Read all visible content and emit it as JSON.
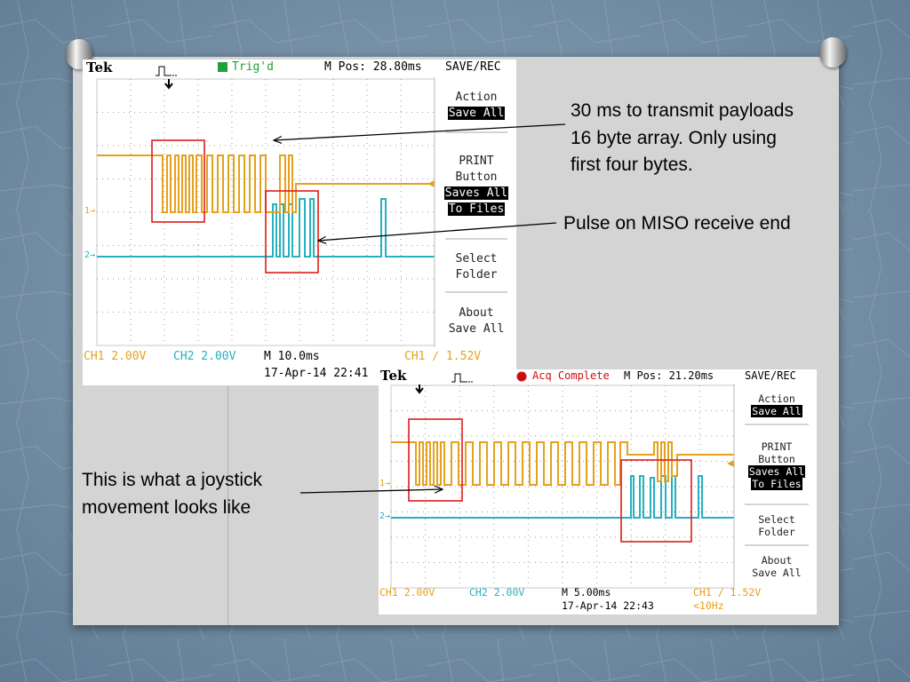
{
  "scope1": {
    "brand": "Tek",
    "trigger_status": "Trig'd",
    "m_pos": "M Pos: 28.80ms",
    "menu_title": "SAVE/REC",
    "action_label": "Action",
    "action_value": "Save All",
    "print_line1": "PRINT",
    "print_line2": "Button",
    "print_value1": "Saves All",
    "print_value2": "To Files",
    "select_line1": "Select",
    "select_line2": "Folder",
    "about_line1": "About",
    "about_line2": "Save All",
    "ch1_scale": "CH1  2.00V",
    "ch2_scale": "CH2  2.00V",
    "timebase": "M 10.0ms",
    "datetime": "17-Apr-14 22:41",
    "trigger_level": "CH1 ∕ 1.52V",
    "ch1_marker": "1→",
    "ch2_marker": "2→"
  },
  "scope2": {
    "brand": "Tek",
    "acq_status": "Acq Complete",
    "m_pos": "M Pos: 21.20ms",
    "menu_title": "SAVE/REC",
    "action_label": "Action",
    "action_value": "Save All",
    "print_line1": "PRINT",
    "print_line2": "Button",
    "print_value1": "Saves All",
    "print_value2": "To Files",
    "select_line1": "Select",
    "select_line2": "Folder",
    "about_line1": "About",
    "about_line2": "Save All",
    "ch1_scale": "CH1  2.00V",
    "ch2_scale": "CH2  2.00V",
    "timebase": "M 5.00ms",
    "datetime": "17-Apr-14 22:43",
    "trigger_level": "CH1 ∕ 1.52V",
    "trigger_freq": "<10Hz",
    "ch1_marker": "1→",
    "ch2_marker": "2→"
  },
  "callouts": {
    "payload_line1": "30 ms to transmit payloads",
    "payload_line2": "16 byte array. Only using",
    "payload_line3": "first four bytes.",
    "miso": "Pulse on MISO receive end",
    "joystick_line1": "This is what a joystick",
    "joystick_line2": "movement looks like"
  },
  "colors": {
    "ch1": "#e6a11c",
    "ch2": "#25b1bf",
    "highlight": "#dd1c1c"
  }
}
